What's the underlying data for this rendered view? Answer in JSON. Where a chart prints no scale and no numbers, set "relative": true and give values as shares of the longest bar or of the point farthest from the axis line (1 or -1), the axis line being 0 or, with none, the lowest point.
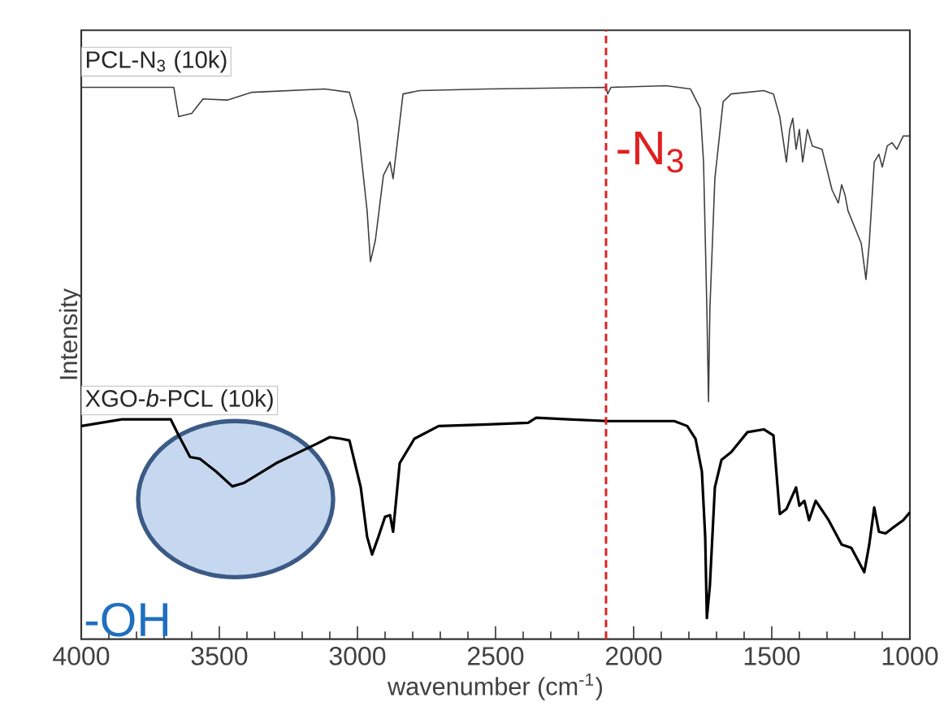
{
  "chart_data": {
    "type": "line",
    "relative": true,
    "xlabel": "wavenumber (cm$^{-1}$)",
    "ylabel": "Intensity",
    "xlim": [
      4000,
      1000
    ],
    "xticks": [
      4000,
      3500,
      3000,
      2500,
      2000,
      1500,
      1000
    ],
    "grid": false,
    "legend": false,
    "marker": "none",
    "line_style": "solid",
    "x": [
      4000,
      3665,
      3647,
      3600,
      3559,
      3471,
      3382,
      3118,
      3029,
      3000,
      2965,
      2953,
      2935,
      2906,
      2882,
      2871,
      2835,
      2776,
      2529,
      2100,
      2094,
      2082,
      1882,
      1794,
      1759,
      1747,
      1735,
      1729,
      1724,
      1706,
      1676,
      1647,
      1529,
      1494,
      1471,
      1447,
      1435,
      1424,
      1412,
      1400,
      1388,
      1371,
      1353,
      1318,
      1282,
      1259,
      1247,
      1235,
      1224,
      1176,
      1159,
      1147,
      1129,
      1112,
      1100,
      1082,
      1065,
      1047,
      1024,
      1000
    ],
    "series": [
      {
        "name": "PCL-N$_{3}$ (10k)",
        "color": "#404040",
        "values": [
          0.997,
          0.997,
          0.944,
          0.95,
          0.976,
          0.974,
          0.988,
          0.994,
          0.988,
          0.935,
          0.774,
          0.682,
          0.721,
          0.838,
          0.862,
          0.832,
          0.985,
          0.991,
          0.994,
          0.997,
          0.985,
          0.997,
          1.0,
          0.994,
          0.959,
          0.862,
          0.597,
          0.429,
          0.597,
          0.832,
          0.971,
          0.985,
          0.991,
          0.985,
          0.944,
          0.862,
          0.921,
          0.941,
          0.885,
          0.921,
          0.862,
          0.921,
          0.891,
          0.885,
          0.812,
          0.788,
          0.821,
          0.803,
          0.774,
          0.715,
          0.65,
          0.715,
          0.862,
          0.876,
          0.853,
          0.891,
          0.897,
          0.885,
          0.909,
          0.909
        ]
      },
      {
        "name": "XGO-*b*-PCL (10k)",
        "color": "#000000",
        "x": [
          4000,
          3853,
          3676,
          3647,
          3606,
          3571,
          3512,
          3453,
          3412,
          3294,
          3147,
          3100,
          3059,
          3029,
          2988,
          2965,
          2947,
          2924,
          2900,
          2882,
          2871,
          2847,
          2794,
          2706,
          2529,
          2382,
          2353,
          2235,
          2094,
          1853,
          1806,
          1776,
          1753,
          1741,
          1735,
          1724,
          1706,
          1682,
          1647,
          1588,
          1529,
          1494,
          1471,
          1447,
          1412,
          1400,
          1382,
          1365,
          1341,
          1294,
          1247,
          1212,
          1165,
          1147,
          1129,
          1112,
          1088,
          1065,
          1024,
          1000
        ],
        "values": [
          0.385,
          0.397,
          0.397,
          0.368,
          0.329,
          0.326,
          0.303,
          0.276,
          0.282,
          0.318,
          0.353,
          0.365,
          0.362,
          0.359,
          0.274,
          0.185,
          0.153,
          0.185,
          0.221,
          0.224,
          0.194,
          0.318,
          0.362,
          0.385,
          0.388,
          0.391,
          0.4,
          0.397,
          0.394,
          0.394,
          0.385,
          0.362,
          0.303,
          0.185,
          0.038,
          0.097,
          0.274,
          0.324,
          0.338,
          0.374,
          0.379,
          0.368,
          0.226,
          0.235,
          0.274,
          0.241,
          0.25,
          0.215,
          0.25,
          0.215,
          0.171,
          0.165,
          0.121,
          0.171,
          0.238,
          0.194,
          0.191,
          0.2,
          0.215,
          0.229
        ]
      }
    ],
    "ref_lines": [
      {
        "axis": "x",
        "value": 2100,
        "color": "#e02020",
        "line_style": "dashed"
      }
    ],
    "annotations": [
      {
        "text": "-N$_{3}$",
        "x": 2075,
        "y": 0.88
      },
      "-OH"
    ]
  }
}
